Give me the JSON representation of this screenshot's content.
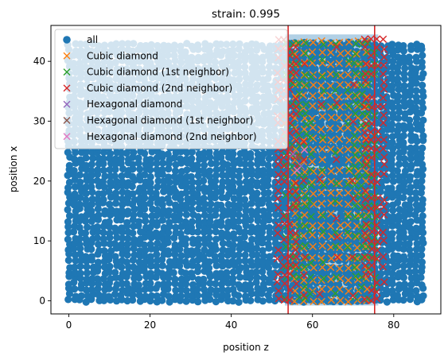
{
  "chart_data": {
    "type": "scatter",
    "title": "strain: 0.995",
    "xlabel": "position z",
    "ylabel": "position x",
    "xlim": [
      -4.4,
      91.6
    ],
    "ylim": [
      -2.2,
      46.0
    ],
    "xticks": [
      0,
      20,
      40,
      60,
      80
    ],
    "yticks": [
      0,
      10,
      20,
      30,
      40
    ],
    "grid": false,
    "legend_position": "upper-left",
    "vertical_lines": [
      {
        "x": 54.0,
        "color": "#d62728"
      },
      {
        "x": 75.3,
        "color": "#d62728"
      }
    ],
    "series": [
      {
        "name": "all",
        "marker": "circle",
        "color": "#1f77b4",
        "x_range": [
          0,
          87.5
        ],
        "y_range": [
          0,
          43.6
        ]
      },
      {
        "name": "Cubic diamond",
        "marker": "x",
        "color": "#ff7f0e",
        "x_range": [
          55.5,
          73.5
        ],
        "y_range": [
          0,
          43.6
        ]
      },
      {
        "name": "Cubic diamond (1st neighbor)",
        "marker": "x",
        "color": "#2ca02c",
        "x_range": [
          53.5,
          75.5
        ],
        "y_range": [
          0,
          43.6
        ]
      },
      {
        "name": "Cubic diamond (2nd neighbor)",
        "marker": "x",
        "color": "#d62728",
        "x_range": [
          51.5,
          78
        ],
        "y_range": [
          0,
          43.6
        ]
      },
      {
        "name": "Hexagonal diamond",
        "marker": "x",
        "color": "#9467bd",
        "points": [
          [
            55.2,
            24.5
          ],
          [
            57.2,
            22.5
          ]
        ]
      },
      {
        "name": "Hexagonal diamond (1st neighbor)",
        "marker": "x",
        "color": "#8c564b",
        "points": [
          [
            54.4,
            25.5
          ],
          [
            56.6,
            24.0
          ]
        ]
      },
      {
        "name": "Hexagonal diamond (2nd neighbor)",
        "marker": "x",
        "color": "#e377c2",
        "points": [
          [
            56.2,
            21.8
          ],
          [
            58.0,
            25.2
          ]
        ]
      }
    ]
  }
}
